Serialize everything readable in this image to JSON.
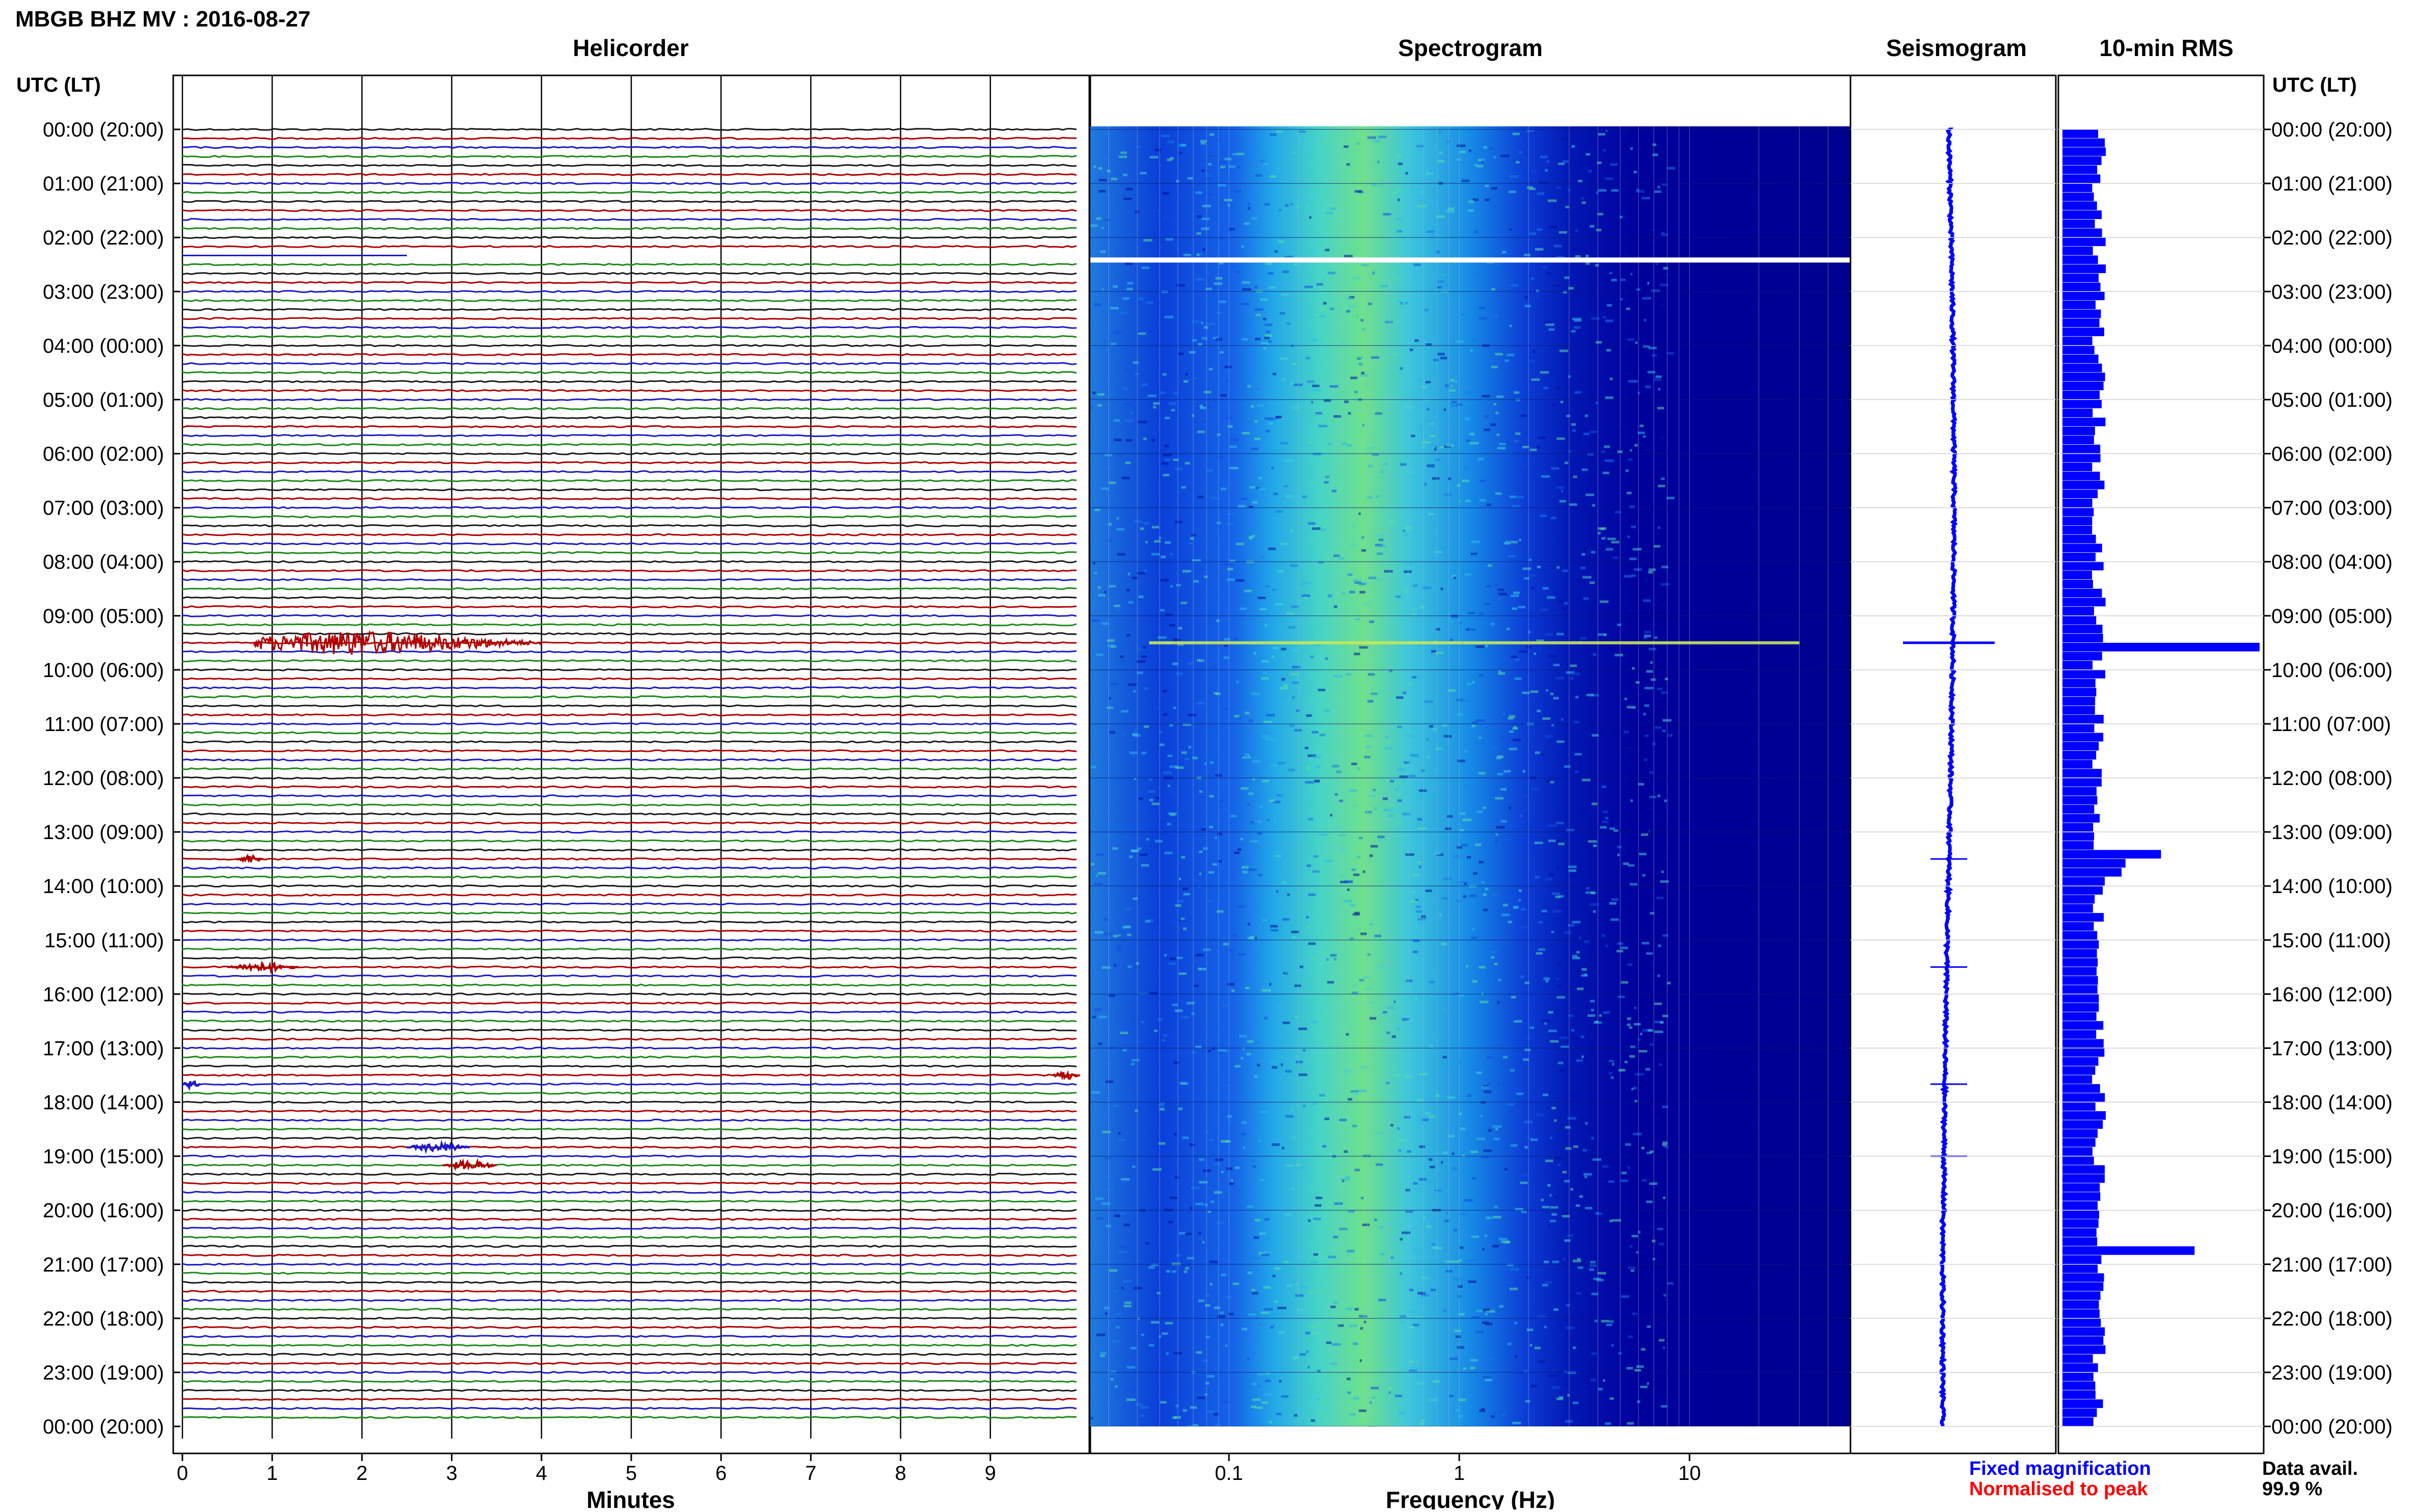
{
  "header": {
    "title": "MBGB BHZ MV : 2016-08-27",
    "panel_titles": [
      "Helicorder",
      "Spectrogram",
      "Seismogram",
      "10-min RMS"
    ],
    "left_axis_label": "UTC (LT)",
    "right_axis_label": "UTC (LT)"
  },
  "time_labels": [
    "00:00 (20:00)",
    "01:00 (21:00)",
    "02:00 (22:00)",
    "03:00 (23:00)",
    "04:00 (00:00)",
    "05:00 (01:00)",
    "06:00 (02:00)",
    "07:00 (03:00)",
    "08:00 (04:00)",
    "09:00 (05:00)",
    "10:00 (06:00)",
    "11:00 (07:00)",
    "12:00 (08:00)",
    "13:00 (09:00)",
    "14:00 (10:00)",
    "15:00 (11:00)",
    "16:00 (12:00)",
    "17:00 (13:00)",
    "18:00 (14:00)",
    "19:00 (15:00)",
    "20:00 (16:00)",
    "21:00 (17:00)",
    "22:00 (18:00)",
    "23:00 (19:00)",
    "00:00 (20:00)"
  ],
  "footer": {
    "fixed_magnification": "Fixed magnification",
    "normalised_to_peak": "Normalised to peak",
    "data_avail_label": "Data avail.",
    "data_avail_value": "99.9 %"
  },
  "colors": {
    "helicorder_traces": [
      "#1a1a1a",
      "#b00000",
      "#1a1acc",
      "#1a8a1a"
    ],
    "spectrogram_background": "#00008f",
    "seismogram_trace": "#0000ff",
    "rms_bars": "#0000ff",
    "fixed_magnification_text": "#0000ff",
    "normalised_to_peak_text": "#ff0000"
  },
  "chart_data": [
    {
      "type": "line",
      "name": "helicorder",
      "title": "Helicorder",
      "xlabel": "Minutes",
      "xlim": [
        0,
        10
      ],
      "x_ticks": [
        0,
        1,
        2,
        3,
        4,
        5,
        6,
        7,
        8,
        9
      ],
      "ylabel": "UTC (LT)",
      "traces_per_hour": 6,
      "trace_minutes": 10,
      "gap": {
        "start_utc": "02:20",
        "end_utc": "02:30"
      },
      "events": [
        {
          "utc": "09:30",
          "minute_start": 0.8,
          "minute_end": 4.0,
          "color": "#b00000",
          "amplitude": "large"
        },
        {
          "utc": "13:30",
          "minute_start": 0.6,
          "minute_end": 0.9,
          "color": "#b00000",
          "amplitude": "small"
        },
        {
          "utc": "15:30",
          "minute_start": 0.5,
          "minute_end": 1.3,
          "color": "#b00000",
          "amplitude": "small"
        },
        {
          "utc": "17:30",
          "minute_start": 9.7,
          "minute_end": 10.0,
          "color": "#b00000",
          "amplitude": "small"
        },
        {
          "utc": "17:40",
          "minute_start": 0.0,
          "minute_end": 0.2,
          "color": "#1a1acc",
          "amplitude": "small"
        },
        {
          "utc": "18:50",
          "minute_start": 2.5,
          "minute_end": 3.2,
          "color": "#1a1acc",
          "amplitude": "small"
        },
        {
          "utc": "19:10",
          "minute_start": 2.9,
          "minute_end": 3.5,
          "color": "#b00000",
          "amplitude": "small"
        }
      ]
    },
    {
      "type": "heatmap",
      "name": "spectrogram",
      "title": "Spectrogram",
      "xlabel": "Frequency (Hz)",
      "x_scale": "log",
      "xlim": [
        0.025,
        50
      ],
      "x_tick_labels": [
        "0.1",
        "1",
        "10"
      ],
      "x_tick_values": [
        0.1,
        1,
        10
      ],
      "energy_peak_hz": 0.4,
      "gap_utc": "02:25",
      "broadband_line_utc": "09:30"
    },
    {
      "type": "line",
      "name": "seismogram",
      "title": "Seismogram",
      "spikes_utc": [
        "09:30",
        "13:30",
        "15:30",
        "17:40",
        "19:00"
      ],
      "baseline_shift_utc": "20:10"
    },
    {
      "type": "bar",
      "name": "rms",
      "title": "10-min RMS",
      "orientation": "horizontal",
      "interval_minutes": 10,
      "units": "relative",
      "xlim": [
        0,
        1
      ],
      "baseline": 0.2,
      "peaks": [
        {
          "utc": "09:30",
          "value": 1.0
        },
        {
          "utc": "13:20",
          "value": 0.5
        },
        {
          "utc": "13:30",
          "value": 0.32
        },
        {
          "utc": "13:40",
          "value": 0.3
        },
        {
          "utc": "20:40",
          "value": 0.67
        }
      ]
    }
  ]
}
